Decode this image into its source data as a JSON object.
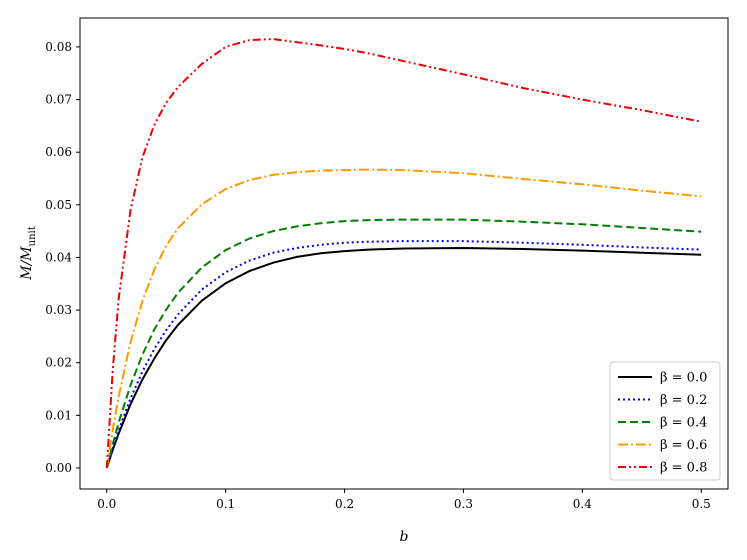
{
  "chart_data": {
    "type": "line",
    "title": "",
    "xlabel": "b",
    "ylabel_main": "M/M",
    "ylabel_sub": "unit",
    "xlim": [
      -0.0225,
      0.5225
    ],
    "ylim": [
      -0.004,
      0.0855
    ],
    "xticks": [
      0.0,
      0.1,
      0.2,
      0.3,
      0.4,
      0.5
    ],
    "xtick_labels": [
      "0.0",
      "0.1",
      "0.2",
      "0.3",
      "0.4",
      "0.5"
    ],
    "yticks": [
      0.0,
      0.01,
      0.02,
      0.03,
      0.04,
      0.05,
      0.06,
      0.07,
      0.08
    ],
    "ytick_labels": [
      "0.00",
      "0.01",
      "0.02",
      "0.03",
      "0.04",
      "0.05",
      "0.06",
      "0.07",
      "0.08"
    ],
    "grid": false,
    "legend_position": "bottom-right",
    "x": [
      0.0,
      0.005,
      0.01,
      0.02,
      0.03,
      0.04,
      0.05,
      0.06,
      0.08,
      0.1,
      0.12,
      0.14,
      0.16,
      0.18,
      0.2,
      0.22,
      0.25,
      0.3,
      0.35,
      0.4,
      0.45,
      0.5
    ],
    "series": [
      {
        "name": "β = 0.0",
        "color": "#000000",
        "dash": "",
        "values": [
          0.0,
          0.0034,
          0.0065,
          0.0121,
          0.0168,
          0.0208,
          0.0243,
          0.0272,
          0.0318,
          0.0351,
          0.0374,
          0.039,
          0.0401,
          0.0408,
          0.0412,
          0.0415,
          0.0417,
          0.0418,
          0.0416,
          0.0413,
          0.0409,
          0.0405
        ]
      },
      {
        "name": "β = 0.2",
        "color": "#0000ee",
        "dash": "2,3",
        "values": [
          0.0,
          0.0037,
          0.0072,
          0.0132,
          0.0183,
          0.0226,
          0.0262,
          0.0292,
          0.0339,
          0.0372,
          0.0394,
          0.0409,
          0.0418,
          0.0424,
          0.0428,
          0.043,
          0.0431,
          0.0431,
          0.0428,
          0.0424,
          0.0419,
          0.0415
        ]
      },
      {
        "name": "β = 0.4",
        "color": "#007f00",
        "dash": "8,4",
        "values": [
          0.0,
          0.0045,
          0.0086,
          0.0157,
          0.0215,
          0.0263,
          0.0301,
          0.0333,
          0.0381,
          0.0414,
          0.0436,
          0.045,
          0.0459,
          0.0465,
          0.0469,
          0.0471,
          0.0472,
          0.0472,
          0.0468,
          0.0463,
          0.0456,
          0.0449
        ]
      },
      {
        "name": "β = 0.6",
        "color": "#ff9900",
        "dash": "10,3,2,3",
        "values": [
          0.0,
          0.0072,
          0.0135,
          0.0239,
          0.0317,
          0.0377,
          0.0422,
          0.0456,
          0.0501,
          0.053,
          0.0547,
          0.0557,
          0.0562,
          0.0565,
          0.0566,
          0.0567,
          0.0566,
          0.056,
          0.0549,
          0.0539,
          0.0527,
          0.0516
        ]
      },
      {
        "name": "β = 0.8",
        "color": "#ee0000",
        "dash": "8,3,2,3,2,3",
        "values": [
          0.0,
          0.0185,
          0.032,
          0.049,
          0.059,
          0.0652,
          0.0694,
          0.0724,
          0.0768,
          0.08,
          0.0813,
          0.0815,
          0.0809,
          0.0803,
          0.0796,
          0.0788,
          0.0773,
          0.0748,
          0.0722,
          0.07,
          0.068,
          0.0658
        ]
      }
    ]
  }
}
